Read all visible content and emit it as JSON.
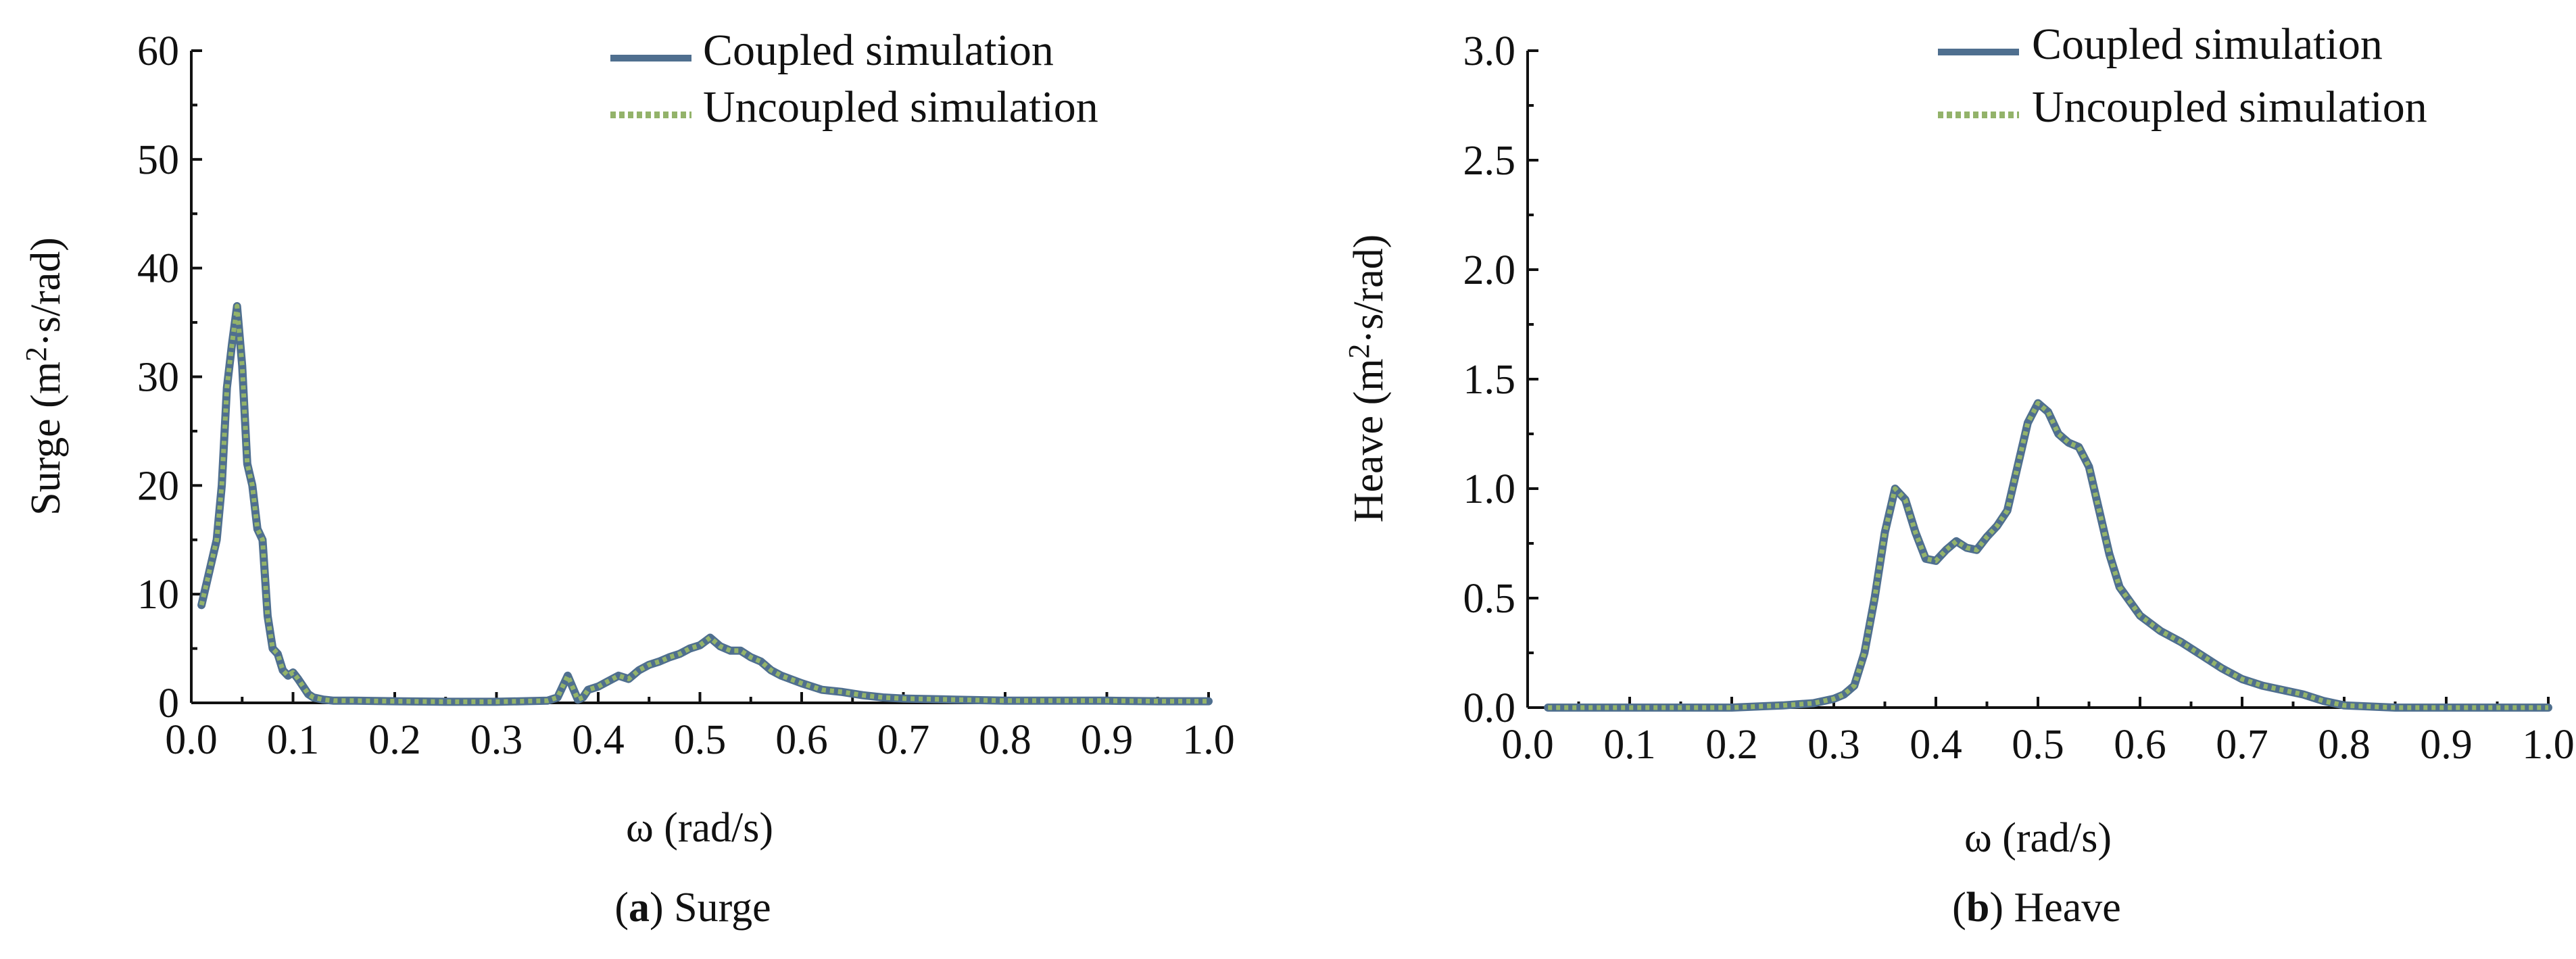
{
  "chart_data": [
    {
      "type": "line",
      "caption_letter": "a",
      "caption_text": "Surge",
      "xlabel": "ω (rad/s)",
      "ylabel_prefix": "Surge (m",
      "ylabel_sup": "2",
      "ylabel_suffix": "·s/rad)",
      "xlim": [
        0,
        1.0
      ],
      "ylim": [
        0,
        60
      ],
      "x_ticks": [
        0.0,
        0.1,
        0.2,
        0.3,
        0.4,
        0.5,
        0.6,
        0.7,
        0.8,
        0.9,
        1.0
      ],
      "x_tick_labels": [
        "0.0",
        "0.1",
        "0.2",
        "0.3",
        "0.4",
        "0.5",
        "0.6",
        "0.7",
        "0.8",
        "0.9",
        "1.0"
      ],
      "y_ticks": [
        0,
        10,
        20,
        30,
        40,
        50,
        60
      ],
      "y_tick_labels": [
        "0",
        "10",
        "20",
        "30",
        "40",
        "50",
        "60"
      ],
      "legend_position": "top-right",
      "grid": false,
      "series": [
        {
          "name": "Coupled simulation",
          "color": "#4f6f8f",
          "style": "solid",
          "x": [
            0.01,
            0.015,
            0.02,
            0.025,
            0.03,
            0.035,
            0.04,
            0.045,
            0.05,
            0.055,
            0.06,
            0.065,
            0.07,
            0.075,
            0.08,
            0.085,
            0.09,
            0.095,
            0.1,
            0.105,
            0.11,
            0.115,
            0.12,
            0.13,
            0.14,
            0.16,
            0.2,
            0.25,
            0.3,
            0.35,
            0.36,
            0.37,
            0.38,
            0.385,
            0.39,
            0.4,
            0.41,
            0.42,
            0.43,
            0.44,
            0.45,
            0.46,
            0.47,
            0.48,
            0.49,
            0.5,
            0.51,
            0.52,
            0.53,
            0.54,
            0.55,
            0.56,
            0.57,
            0.58,
            0.6,
            0.62,
            0.64,
            0.66,
            0.68,
            0.7,
            0.75,
            0.8,
            0.85,
            0.9,
            0.95,
            1.0
          ],
          "y": [
            9,
            11,
            13,
            15,
            20,
            29,
            33,
            36.5,
            31,
            22,
            20,
            16,
            15,
            8,
            5,
            4.5,
            3,
            2.5,
            2.8,
            2.2,
            1.5,
            0.8,
            0.5,
            0.3,
            0.2,
            0.2,
            0.15,
            0.1,
            0.1,
            0.2,
            0.5,
            2.5,
            0.3,
            0.5,
            1.2,
            1.5,
            2,
            2.5,
            2.2,
            3,
            3.5,
            3.8,
            4.2,
            4.5,
            5,
            5.3,
            6,
            5.2,
            4.8,
            4.8,
            4.2,
            3.8,
            3,
            2.5,
            1.8,
            1.2,
            1,
            0.7,
            0.5,
            0.4,
            0.3,
            0.2,
            0.2,
            0.2,
            0.15,
            0.15
          ]
        },
        {
          "name": "Uncoupled simulation",
          "color": "#93b36a",
          "style": "dotted",
          "x": [
            0.01,
            0.015,
            0.02,
            0.025,
            0.03,
            0.035,
            0.04,
            0.045,
            0.05,
            0.055,
            0.06,
            0.065,
            0.07,
            0.075,
            0.08,
            0.085,
            0.09,
            0.095,
            0.1,
            0.105,
            0.11,
            0.115,
            0.12,
            0.13,
            0.14,
            0.16,
            0.2,
            0.25,
            0.3,
            0.35,
            0.36,
            0.37,
            0.38,
            0.385,
            0.39,
            0.4,
            0.41,
            0.42,
            0.43,
            0.44,
            0.45,
            0.46,
            0.47,
            0.48,
            0.49,
            0.5,
            0.51,
            0.52,
            0.53,
            0.54,
            0.55,
            0.56,
            0.57,
            0.58,
            0.6,
            0.62,
            0.64,
            0.66,
            0.68,
            0.7,
            0.75,
            0.8,
            0.85,
            0.9,
            0.95,
            1.0
          ],
          "y": [
            9,
            11,
            13,
            15,
            20,
            29,
            33,
            36.5,
            31,
            22,
            20,
            16,
            15,
            8,
            5,
            4.5,
            3,
            2.5,
            2.8,
            2.2,
            1.5,
            0.8,
            0.5,
            0.3,
            0.2,
            0.2,
            0.15,
            0.1,
            0.1,
            0.2,
            0.5,
            2.5,
            0.3,
            0.5,
            1.2,
            1.5,
            2,
            2.5,
            2.2,
            3,
            3.5,
            3.8,
            4.2,
            4.5,
            5,
            5.3,
            6,
            5.2,
            4.8,
            4.8,
            4.2,
            3.8,
            3,
            2.5,
            1.8,
            1.2,
            1,
            0.7,
            0.5,
            0.4,
            0.3,
            0.2,
            0.2,
            0.2,
            0.15,
            0.15
          ]
        }
      ]
    },
    {
      "type": "line",
      "caption_letter": "b",
      "caption_text": "Heave",
      "xlabel": "ω (rad/s)",
      "ylabel_prefix": "Heave (m",
      "ylabel_sup": "2",
      "ylabel_suffix": "·s/rad)",
      "xlim": [
        0,
        1.0
      ],
      "ylim": [
        0,
        3.0
      ],
      "x_ticks": [
        0.0,
        0.1,
        0.2,
        0.3,
        0.4,
        0.5,
        0.6,
        0.7,
        0.8,
        0.9,
        1.0
      ],
      "x_tick_labels": [
        "0.0",
        "0.1",
        "0.2",
        "0.3",
        "0.4",
        "0.5",
        "0.6",
        "0.7",
        "0.8",
        "0.9",
        "1.0"
      ],
      "y_ticks": [
        0,
        0.5,
        1.0,
        1.5,
        2.0,
        2.5,
        3.0
      ],
      "y_tick_labels": [
        "0.0",
        "0.5",
        "1.0",
        "1.5",
        "2.0",
        "2.5",
        "3.0"
      ],
      "legend_position": "top-right",
      "grid": false,
      "series": [
        {
          "name": "Coupled simulation",
          "color": "#4f6f8f",
          "style": "solid",
          "x": [
            0.02,
            0.1,
            0.2,
            0.25,
            0.28,
            0.3,
            0.31,
            0.32,
            0.33,
            0.34,
            0.35,
            0.36,
            0.37,
            0.38,
            0.39,
            0.4,
            0.41,
            0.42,
            0.43,
            0.44,
            0.45,
            0.46,
            0.47,
            0.48,
            0.49,
            0.5,
            0.51,
            0.52,
            0.53,
            0.54,
            0.55,
            0.56,
            0.57,
            0.58,
            0.6,
            0.62,
            0.64,
            0.66,
            0.68,
            0.7,
            0.72,
            0.74,
            0.76,
            0.78,
            0.8,
            0.85,
            0.9,
            1.0
          ],
          "y": [
            0,
            0,
            0,
            0.01,
            0.02,
            0.04,
            0.06,
            0.1,
            0.25,
            0.5,
            0.8,
            1.0,
            0.95,
            0.8,
            0.68,
            0.67,
            0.72,
            0.76,
            0.73,
            0.72,
            0.78,
            0.83,
            0.9,
            1.1,
            1.3,
            1.39,
            1.35,
            1.25,
            1.21,
            1.19,
            1.1,
            0.9,
            0.7,
            0.55,
            0.42,
            0.35,
            0.3,
            0.24,
            0.18,
            0.13,
            0.1,
            0.08,
            0.06,
            0.03,
            0.01,
            0,
            0,
            0
          ]
        },
        {
          "name": "Uncoupled simulation",
          "color": "#93b36a",
          "style": "dotted",
          "x": [
            0.02,
            0.1,
            0.2,
            0.25,
            0.28,
            0.3,
            0.31,
            0.32,
            0.33,
            0.34,
            0.35,
            0.36,
            0.37,
            0.38,
            0.39,
            0.4,
            0.41,
            0.42,
            0.43,
            0.44,
            0.45,
            0.46,
            0.47,
            0.48,
            0.49,
            0.5,
            0.51,
            0.52,
            0.53,
            0.54,
            0.55,
            0.56,
            0.57,
            0.58,
            0.6,
            0.62,
            0.64,
            0.66,
            0.68,
            0.7,
            0.72,
            0.74,
            0.76,
            0.78,
            0.8,
            0.85,
            0.9,
            1.0
          ],
          "y": [
            0,
            0,
            0,
            0.01,
            0.02,
            0.04,
            0.06,
            0.1,
            0.25,
            0.5,
            0.8,
            1.0,
            0.95,
            0.8,
            0.68,
            0.67,
            0.72,
            0.76,
            0.73,
            0.72,
            0.78,
            0.83,
            0.9,
            1.1,
            1.3,
            1.39,
            1.35,
            1.25,
            1.21,
            1.19,
            1.1,
            0.9,
            0.7,
            0.55,
            0.42,
            0.35,
            0.3,
            0.24,
            0.18,
            0.13,
            0.1,
            0.08,
            0.06,
            0.03,
            0.01,
            0,
            0,
            0
          ]
        }
      ]
    }
  ]
}
